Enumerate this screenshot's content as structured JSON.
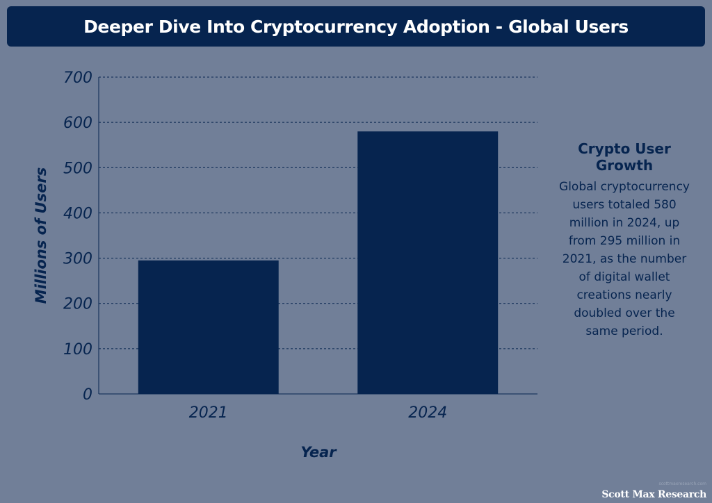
{
  "header": {
    "title": "Deeper Dive Into Cryptocurrency Adoption - Global Users"
  },
  "chart_data": {
    "type": "bar",
    "categories": [
      "2021",
      "2024"
    ],
    "values": [
      295,
      580
    ],
    "xlabel": "Year",
    "ylabel": "Millions of Users",
    "ylim": [
      0,
      700
    ],
    "yticks": [
      "0",
      "100",
      "200",
      "300",
      "400",
      "500",
      "600",
      "700"
    ],
    "grid": true,
    "bar_color": "#06244f"
  },
  "side_panel": {
    "heading": "Crypto User Growth",
    "body": "Global cryptocurrency users totaled 580 million in 2024, up from 295 million in 2021, as the number of digital wallet creations nearly doubled over the same period."
  },
  "footer": {
    "source_url": "scottmaxresearch.com",
    "brand": "Scott Max Research"
  },
  "colors": {
    "background": "#717f98",
    "accent": "#06244f",
    "title_text": "#ffffff"
  }
}
